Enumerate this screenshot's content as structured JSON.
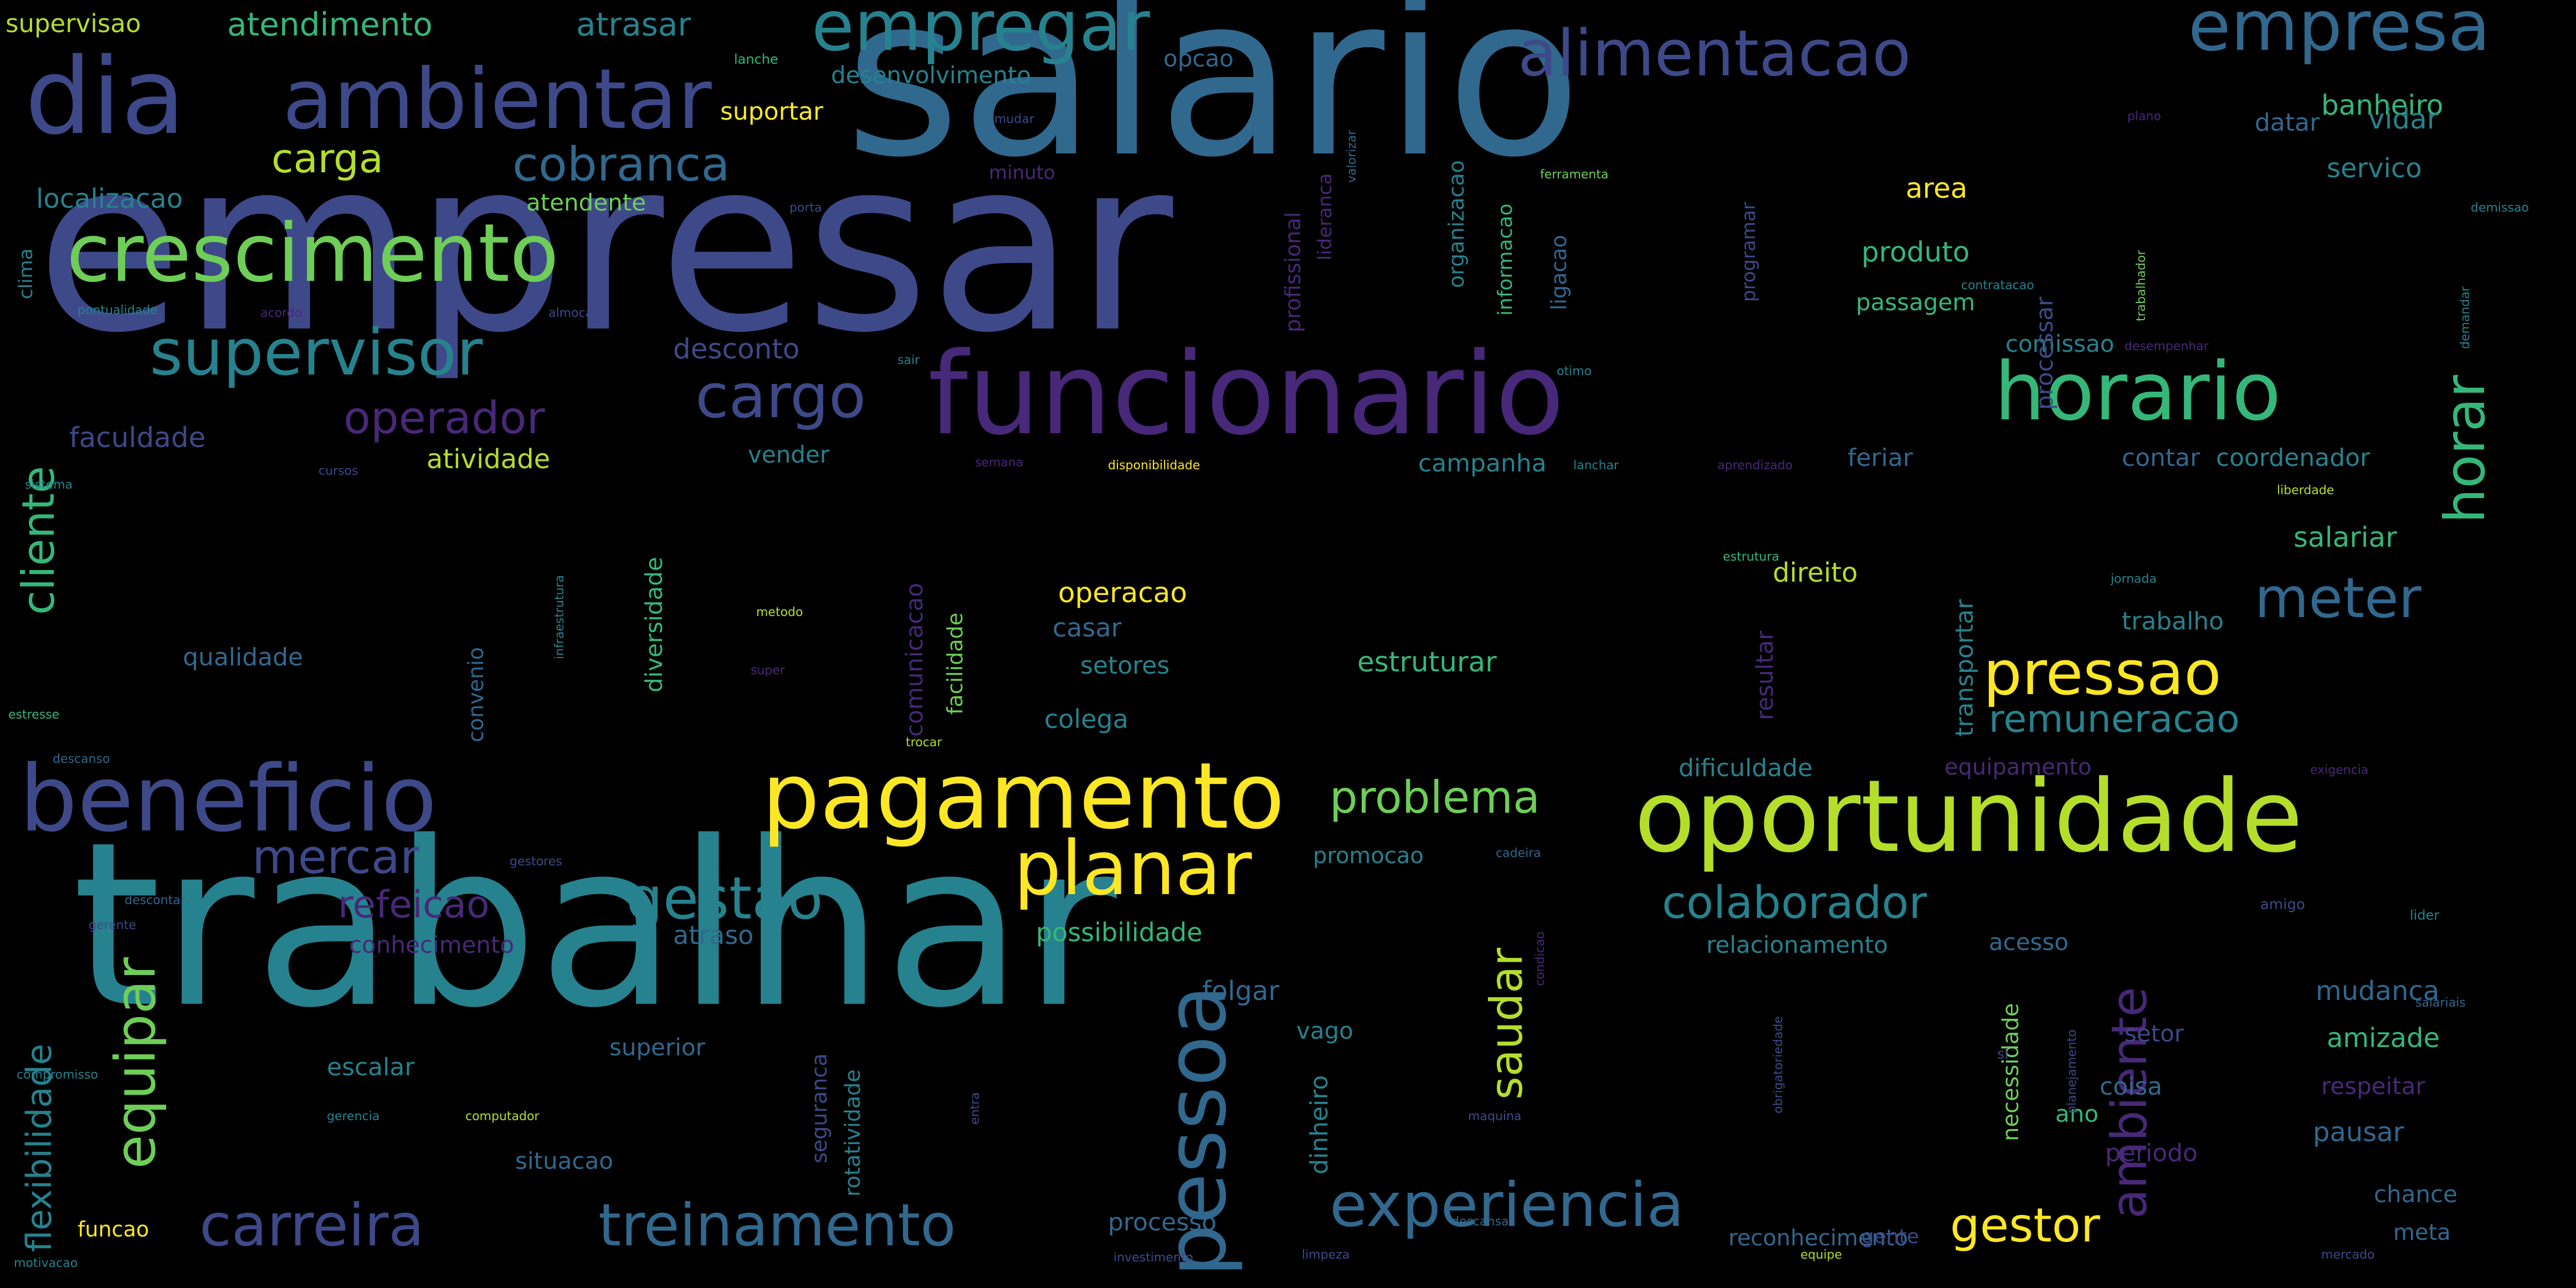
{
  "wordcloud": {
    "background": "#000000",
    "palette": [
      "#440154",
      "#482878",
      "#3e4989",
      "#31688e",
      "#26828e",
      "#1f9e89",
      "#35b779",
      "#6ece58",
      "#b5de2b",
      "#fde725"
    ],
    "words": [
      {
        "text": "empresar",
        "color": "#3e4989"
      },
      {
        "text": "trabalhar",
        "color": "#26828e"
      },
      {
        "text": "salario",
        "color": "#31688e"
      },
      {
        "text": "funcionario",
        "color": "#482878"
      },
      {
        "text": "oportunidade",
        "color": "#b5de2b"
      },
      {
        "text": "pagamento",
        "color": "#fde725"
      },
      {
        "text": "beneficio",
        "color": "#3e4989"
      },
      {
        "text": "crescimento",
        "color": "#6ece58"
      },
      {
        "text": "horario",
        "color": "#35b779"
      },
      {
        "text": "pessoa",
        "color": "#31688e"
      },
      {
        "text": "dia",
        "color": "#3e4989"
      },
      {
        "text": "ambientar",
        "color": "#3e4989"
      },
      {
        "text": "empregar",
        "color": "#26828e"
      },
      {
        "text": "empresa",
        "color": "#31688e"
      },
      {
        "text": "alimentacao",
        "color": "#3e4989"
      },
      {
        "text": "supervisor",
        "color": "#26828e"
      },
      {
        "text": "planar",
        "color": "#fde725"
      },
      {
        "text": "carreira",
        "color": "#3e4989"
      },
      {
        "text": "treinamento",
        "color": "#31688e"
      },
      {
        "text": "experiencia",
        "color": "#31688e"
      },
      {
        "text": "pressao",
        "color": "#fde725"
      },
      {
        "text": "gestao",
        "color": "#26828e"
      },
      {
        "text": "cargo",
        "color": "#3e4989"
      },
      {
        "text": "horar",
        "color": "#35b779"
      },
      {
        "text": "meter",
        "color": "#31688e"
      },
      {
        "text": "equipar",
        "color": "#6ece58"
      },
      {
        "text": "cliente",
        "color": "#35b779"
      },
      {
        "text": "ambiente",
        "color": "#482878"
      },
      {
        "text": "colaborador",
        "color": "#26828e"
      },
      {
        "text": "operador",
        "color": "#482878"
      },
      {
        "text": "problema",
        "color": "#6ece58"
      },
      {
        "text": "gestor",
        "color": "#fde725"
      },
      {
        "text": "cobranca",
        "color": "#31688e"
      },
      {
        "text": "remuneracao",
        "color": "#26828e"
      },
      {
        "text": "mercar",
        "color": "#3e4989"
      },
      {
        "text": "refeicao",
        "color": "#482878"
      },
      {
        "text": "saudar",
        "color": "#b5de2b"
      },
      {
        "text": "carga",
        "color": "#b5de2b"
      },
      {
        "text": "flexibilidade",
        "color": "#26828e"
      },
      {
        "text": "atendimento",
        "color": "#35b779"
      },
      {
        "text": "atrasar",
        "color": "#26828e"
      },
      {
        "text": "supervisao",
        "color": "#b5de2b"
      },
      {
        "text": "desenvolvimento",
        "color": "#26828e"
      },
      {
        "text": "banheiro",
        "color": "#35b779"
      },
      {
        "text": "vidar",
        "color": "#26828e"
      },
      {
        "text": "servico",
        "color": "#26828e"
      },
      {
        "text": "datar",
        "color": "#31688e"
      },
      {
        "text": "opcao",
        "color": "#31688e"
      },
      {
        "text": "suportar",
        "color": "#fde725"
      },
      {
        "text": "localizacao",
        "color": "#26828e"
      },
      {
        "text": "atendente",
        "color": "#6ece58"
      },
      {
        "text": "area",
        "color": "#fde725"
      },
      {
        "text": "produto",
        "color": "#35b779"
      },
      {
        "text": "passagem",
        "color": "#35b779"
      },
      {
        "text": "comissao",
        "color": "#26828e"
      },
      {
        "text": "desconto",
        "color": "#3e4989"
      },
      {
        "text": "faculdade",
        "color": "#3e4989"
      },
      {
        "text": "atividade",
        "color": "#b5de2b"
      },
      {
        "text": "vender",
        "color": "#26828e"
      },
      {
        "text": "campanha",
        "color": "#26828e"
      },
      {
        "text": "feriar",
        "color": "#31688e"
      },
      {
        "text": "contar",
        "color": "#31688e"
      },
      {
        "text": "coordenador",
        "color": "#26828e"
      },
      {
        "text": "salariar",
        "color": "#35b779"
      },
      {
        "text": "direito",
        "color": "#b5de2b"
      },
      {
        "text": "operacao",
        "color": "#fde725"
      },
      {
        "text": "casar",
        "color": "#31688e"
      },
      {
        "text": "trabalho",
        "color": "#26828e"
      },
      {
        "text": "qualidade",
        "color": "#31688e"
      },
      {
        "text": "setores",
        "color": "#26828e"
      },
      {
        "text": "estruturar",
        "color": "#35b779"
      },
      {
        "text": "colega",
        "color": "#26828e"
      },
      {
        "text": "dificuldade",
        "color": "#26828e"
      },
      {
        "text": "equipamento",
        "color": "#482878"
      },
      {
        "text": "promocao",
        "color": "#26828e"
      },
      {
        "text": "conhecimento",
        "color": "#482878"
      },
      {
        "text": "atraso",
        "color": "#31688e"
      },
      {
        "text": "possibilidade",
        "color": "#35b779"
      },
      {
        "text": "relacionamento",
        "color": "#26828e"
      },
      {
        "text": "acesso",
        "color": "#31688e"
      },
      {
        "text": "mudanca",
        "color": "#31688e"
      },
      {
        "text": "amizade",
        "color": "#35b779"
      },
      {
        "text": "respeitar",
        "color": "#482878"
      },
      {
        "text": "pausar",
        "color": "#31688e"
      },
      {
        "text": "chance",
        "color": "#31688e"
      },
      {
        "text": "meta",
        "color": "#31688e"
      },
      {
        "text": "folgar",
        "color": "#31688e"
      },
      {
        "text": "vago",
        "color": "#26828e"
      },
      {
        "text": "superior",
        "color": "#31688e"
      },
      {
        "text": "setor",
        "color": "#3e4989"
      },
      {
        "text": "escalar",
        "color": "#26828e"
      },
      {
        "text": "coisa",
        "color": "#31688e"
      },
      {
        "text": "dinheiro",
        "color": "#26828e"
      },
      {
        "text": "ano",
        "color": "#35b779"
      },
      {
        "text": "periodo",
        "color": "#482878"
      },
      {
        "text": "situacao",
        "color": "#31688e"
      },
      {
        "text": "funcao",
        "color": "#fde725"
      },
      {
        "text": "processo",
        "color": "#31688e"
      },
      {
        "text": "reconhecimento",
        "color": "#31688e"
      },
      {
        "text": "gente",
        "color": "#3e4989"
      },
      {
        "text": "necessidade",
        "color": "#6ece58"
      },
      {
        "text": "seguranca",
        "color": "#3e4989"
      },
      {
        "text": "rotatividade",
        "color": "#26828e"
      },
      {
        "text": "diversidade",
        "color": "#35b779"
      },
      {
        "text": "convenio",
        "color": "#31688e"
      },
      {
        "text": "comunicacao",
        "color": "#482878"
      },
      {
        "text": "facilidade",
        "color": "#6ece58"
      },
      {
        "text": "transportar",
        "color": "#26828e"
      },
      {
        "text": "resultar",
        "color": "#482878"
      },
      {
        "text": "profissional",
        "color": "#482878"
      },
      {
        "text": "lideranca",
        "color": "#482878"
      },
      {
        "text": "informacao",
        "color": "#35b779"
      },
      {
        "text": "ligacao",
        "color": "#31688e"
      },
      {
        "text": "programar",
        "color": "#3e4989"
      },
      {
        "text": "processar",
        "color": "#3e4989"
      },
      {
        "text": "organizacao",
        "color": "#26828e"
      },
      {
        "text": "clima",
        "color": "#26828e"
      },
      {
        "text": "minuto",
        "color": "#482878"
      },
      {
        "text": "lanche",
        "color": "#35b779"
      },
      {
        "text": "ferramenta",
        "color": "#6ece58"
      },
      {
        "text": "porta",
        "color": "#3e4989"
      },
      {
        "text": "plano",
        "color": "#482878"
      },
      {
        "text": "mudar",
        "color": "#3e4989"
      },
      {
        "text": "valorizar",
        "color": "#31688e"
      },
      {
        "text": "demissao",
        "color": "#26828e"
      },
      {
        "text": "trabalhador",
        "color": "#6ece58"
      },
      {
        "text": "contratacao",
        "color": "#26828e"
      },
      {
        "text": "desempenhar",
        "color": "#482878"
      },
      {
        "text": "demandar",
        "color": "#26828e"
      },
      {
        "text": "pontualidade",
        "color": "#26828e"
      },
      {
        "text": "acordo",
        "color": "#482878"
      },
      {
        "text": "almocar",
        "color": "#3e4989"
      },
      {
        "text": "disponibilidade",
        "color": "#fde725"
      },
      {
        "text": "lanchar",
        "color": "#26828e"
      },
      {
        "text": "aprendizado",
        "color": "#482878"
      },
      {
        "text": "liberdade",
        "color": "#b5de2b"
      },
      {
        "text": "estrutura",
        "color": "#35b779"
      },
      {
        "text": "jornada",
        "color": "#26828e"
      },
      {
        "text": "metodo",
        "color": "#b5de2b"
      },
      {
        "text": "super",
        "color": "#482878"
      },
      {
        "text": "infraestrutura",
        "color": "#26828e"
      },
      {
        "text": "trocar",
        "color": "#b5de2b"
      },
      {
        "text": "estresse",
        "color": "#35b779"
      },
      {
        "text": "descanso",
        "color": "#31688e"
      },
      {
        "text": "exigencia",
        "color": "#482878"
      },
      {
        "text": "gestores",
        "color": "#3e4989"
      },
      {
        "text": "cadeira",
        "color": "#31688e"
      },
      {
        "text": "amigo",
        "color": "#3e4989"
      },
      {
        "text": "lider",
        "color": "#26828e"
      },
      {
        "text": "descontar",
        "color": "#31688e"
      },
      {
        "text": "gerente",
        "color": "#3e4989"
      },
      {
        "text": "salariais",
        "color": "#31688e"
      },
      {
        "text": "condicao",
        "color": "#482878"
      },
      {
        "text": "computador",
        "color": "#b5de2b"
      },
      {
        "text": "maquina",
        "color": "#3e4989"
      },
      {
        "text": "gerencia",
        "color": "#26828e"
      },
      {
        "text": "compromisso",
        "color": "#26828e"
      },
      {
        "text": "motivacao",
        "color": "#26828e"
      },
      {
        "text": "investimento",
        "color": "#3e4989"
      },
      {
        "text": "limpeza",
        "color": "#3e4989"
      },
      {
        "text": "descansar",
        "color": "#31688e"
      },
      {
        "text": "equipe",
        "color": "#b5de2b"
      },
      {
        "text": "mercado",
        "color": "#3e4989"
      },
      {
        "text": "obrigatoriedade",
        "color": "#3e4989"
      },
      {
        "text": "planejamento",
        "color": "#3e4989"
      },
      {
        "text": "sistema",
        "color": "#26828e"
      },
      {
        "text": "cursos",
        "color": "#3e4989"
      },
      {
        "text": "otimo",
        "color": "#26828e"
      },
      {
        "text": "semana",
        "color": "#482878"
      },
      {
        "text": "entra",
        "color": "#3e4989"
      },
      {
        "text": "sair",
        "color": "#26828e"
      },
      {
        "text": "si",
        "color": "#3e4989"
      }
    ]
  }
}
